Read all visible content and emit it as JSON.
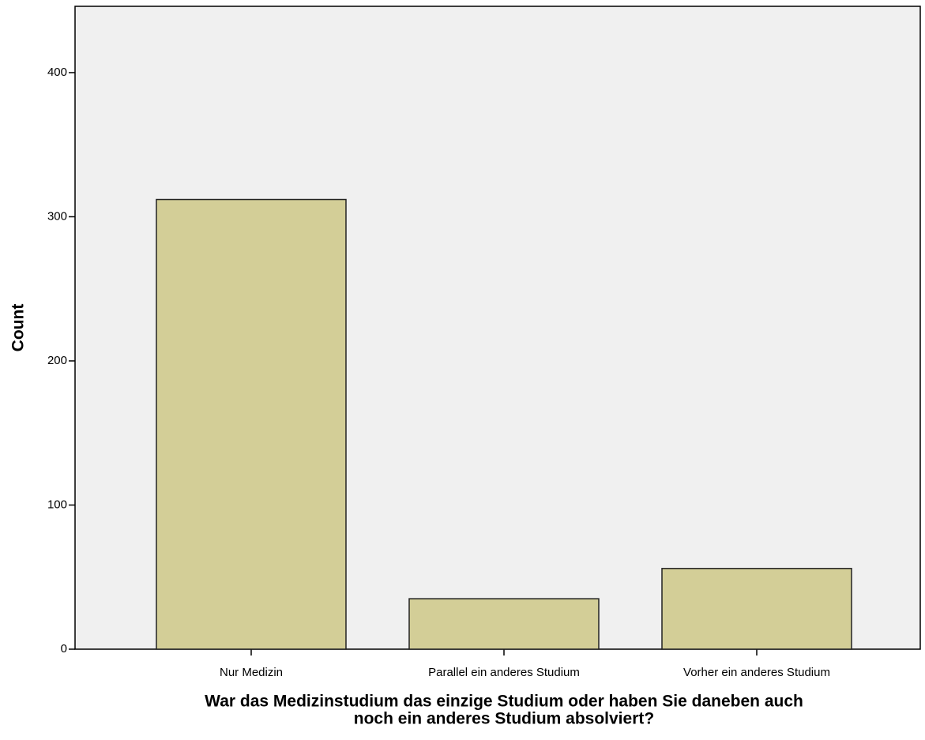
{
  "chart_data": {
    "type": "bar",
    "ylabel": "Count",
    "xlabel": [
      "War das Medizinstudium das einzige Studium oder haben Sie daneben auch",
      "noch ein anderes Studium absolviert?"
    ],
    "categories": [
      "Nur Medizin",
      "Parallel ein anderes Studium",
      "Vorher ein anderes Studium"
    ],
    "values": [
      312,
      35,
      56
    ],
    "color": "#d3ce97",
    "ylim": [
      0,
      446
    ],
    "yticks": [
      0,
      100,
      200,
      300,
      400
    ],
    "grid": false
  }
}
